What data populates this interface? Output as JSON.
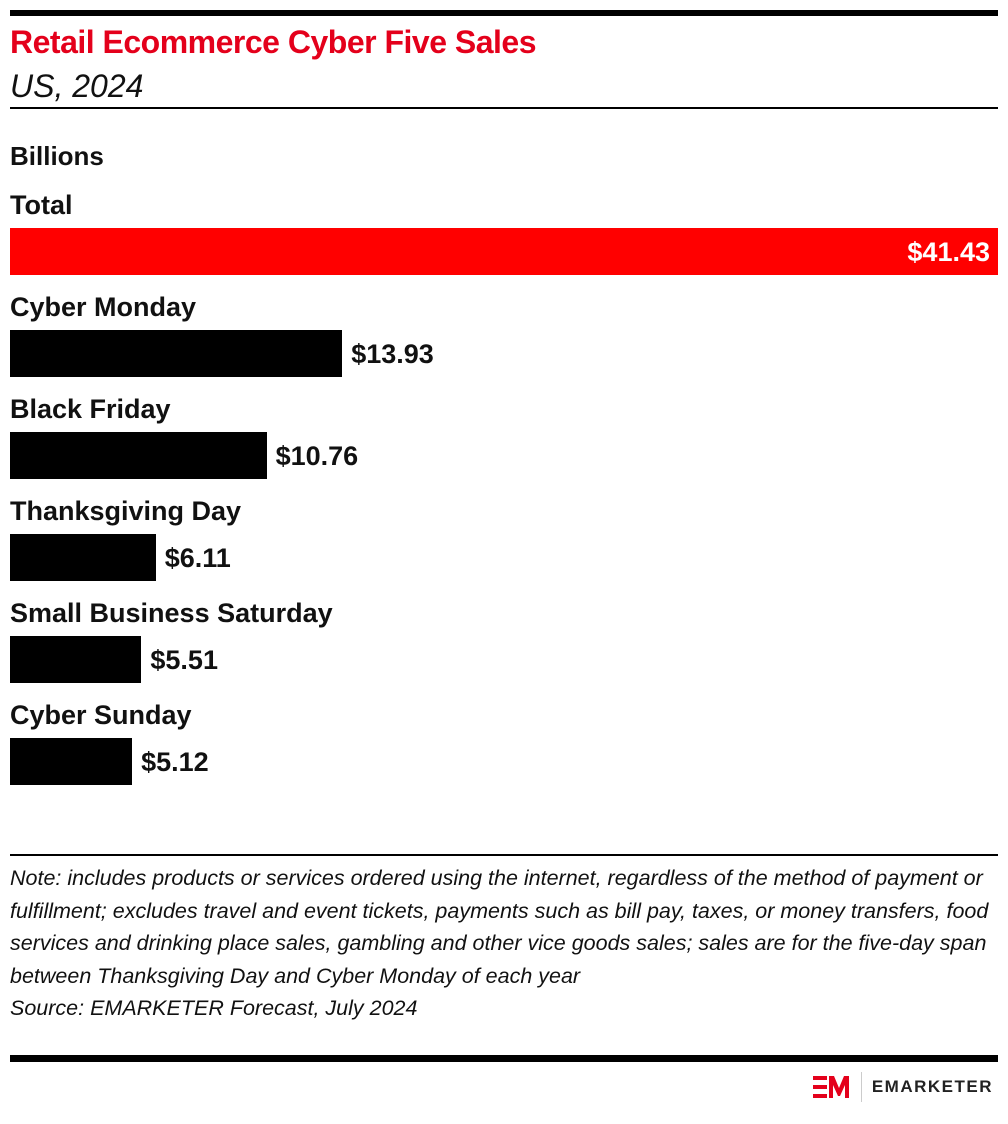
{
  "title": "Retail Ecommerce Cyber Five Sales",
  "subtitle": "US, 2024",
  "chart_data": {
    "type": "bar",
    "orientation": "horizontal",
    "unit_label": "Billions",
    "categories": [
      "Total",
      "Cyber Monday",
      "Black Friday",
      "Thanksgiving Day",
      "Small Business Saturday",
      "Cyber Sunday"
    ],
    "values": [
      41.43,
      13.93,
      10.76,
      6.11,
      5.51,
      5.12
    ],
    "data_labels": [
      "$41.43",
      "$13.93",
      "$10.76",
      "$6.11",
      "$5.51",
      "$5.12"
    ],
    "colors": {
      "total": "#ff0000",
      "other": "#000000"
    },
    "grid": false,
    "xlim": [
      0,
      41.43
    ]
  },
  "note": "Note: includes products or services ordered using the internet, regardless of the method of payment or fulfillment; excludes travel and event tickets, payments such as bill pay, taxes, or money transfers, food services and drinking place sales, gambling and other vice goods sales; sales are for the five-day span between Thanksgiving Day and Cyber Monday of each year",
  "source": "Source: EMARKETER Forecast, July 2024",
  "logo": {
    "text": "EMARKETER",
    "mark": "EM",
    "color": "#e4001b"
  }
}
